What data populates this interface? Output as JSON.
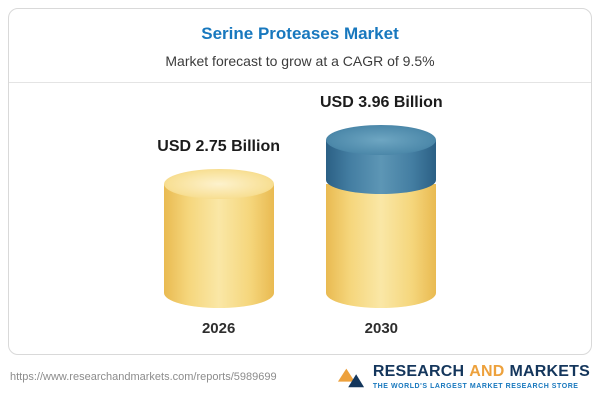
{
  "header": {
    "title": "Serine Proteases Market",
    "subtitle": "Market forecast to grow at a CAGR of 9.5%"
  },
  "chart_data": {
    "type": "bar",
    "title": "Serine Proteases Market",
    "subtitle": "Market forecast to grow at a CAGR of 9.5%",
    "categories": [
      "2026",
      "2030"
    ],
    "values": [
      2.75,
      3.96
    ],
    "value_labels": [
      "USD 2.75 Billion",
      "USD 3.96 Billion"
    ],
    "unit": "USD Billion",
    "cagr": "9.5%",
    "ylim": [
      0,
      4.5
    ],
    "legend_position": "none",
    "grid": false,
    "bar_style": "cylinder",
    "colors": {
      "base": "#f5d67c",
      "growth": "#447ea2"
    },
    "notes": "2030 bar shows base value in yellow with growth portion (3.96 - 2.75) in blue on top"
  },
  "footer": {
    "url": "https://www.researchandmarkets.com/reports/5989699",
    "logo": {
      "research": "RESEARCH",
      "and": "AND",
      "markets": "MARKETS",
      "tagline": "THE WORLD'S LARGEST MARKET RESEARCH STORE"
    }
  }
}
